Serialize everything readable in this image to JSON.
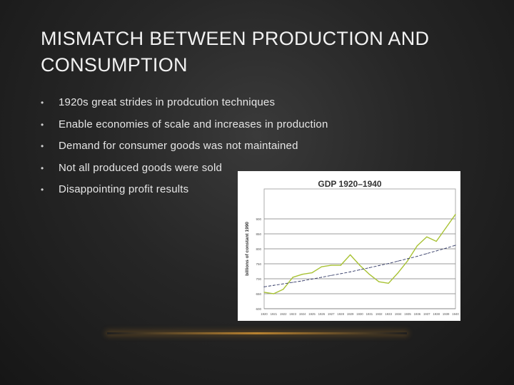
{
  "slide": {
    "title": "MISMATCH BETWEEN PRODUCTION AND CONSUMPTION",
    "bullet_glyph": "•",
    "bullets": [
      "1920s great strides in prodcution techniques",
      "Enable economies of scale and increases in production",
      "Demand for consumer goods was not maintained",
      "Not all produced goods were sold",
      "Disappointing profit results"
    ]
  },
  "chart_data": {
    "type": "line",
    "title": "GDP 1920–1940",
    "ylabel": "billions of constant 1990",
    "ylim": [
      600,
      1000
    ],
    "yticks": [
      "600",
      "650",
      "700",
      "750",
      "800",
      "850",
      "900"
    ],
    "x": [
      "1920",
      "1921",
      "1922",
      "1923",
      "1924",
      "1925",
      "1926",
      "1927",
      "1928",
      "1929",
      "1930",
      "1931",
      "1932",
      "1933",
      "1934",
      "1935",
      "1936",
      "1937",
      "1938",
      "1939",
      "1940"
    ],
    "series": [
      {
        "values": [
          655,
          650,
          665,
          705,
          715,
          720,
          740,
          745,
          745,
          780,
          745,
          715,
          690,
          685,
          720,
          760,
          810,
          840,
          825,
          870,
          915
        ],
        "color": "#a8c234",
        "style": "solid"
      },
      {
        "values": [
          673,
          678,
          683,
          688,
          693,
          699,
          705,
          711,
          717,
          723,
          730,
          737,
          744,
          751,
          759,
          767,
          775,
          784,
          793,
          802,
          812
        ],
        "color": "#333a66",
        "style": "dashed"
      }
    ],
    "grid": true
  }
}
